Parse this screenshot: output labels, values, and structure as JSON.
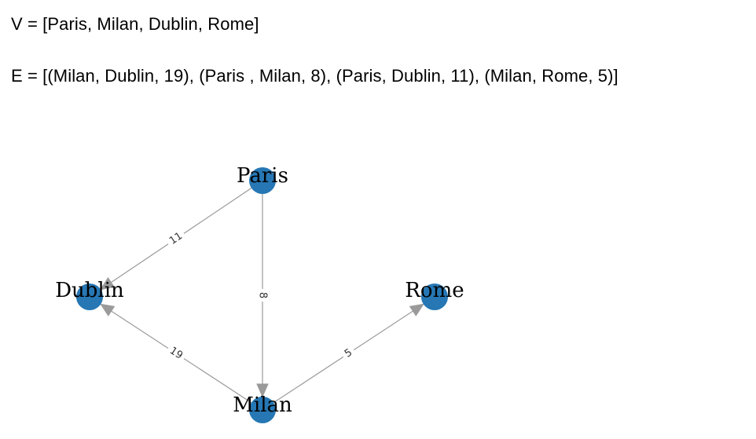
{
  "definitions": {
    "vertices_text": "V = [Paris, Milan, Dublin, Rome]",
    "edges_text": "E = [(Milan, Dublin, 19), (Paris , Milan, 8), (Paris, Dublin, 11), (Milan, Rome, 5)]"
  },
  "graph": {
    "directed": true,
    "node_color": "#2677b4",
    "edge_color": "#9a9a9a",
    "nodes": [
      {
        "id": "Paris",
        "label": "Paris"
      },
      {
        "id": "Milan",
        "label": "Milan"
      },
      {
        "id": "Dublin",
        "label": "Dublin"
      },
      {
        "id": "Rome",
        "label": "Rome"
      }
    ],
    "edges": [
      {
        "source": "Milan",
        "target": "Dublin",
        "weight": "19"
      },
      {
        "source": "Paris",
        "target": "Milan",
        "weight": "8"
      },
      {
        "source": "Paris",
        "target": "Dublin",
        "weight": "11"
      },
      {
        "source": "Milan",
        "target": "Rome",
        "weight": "5"
      }
    ]
  }
}
